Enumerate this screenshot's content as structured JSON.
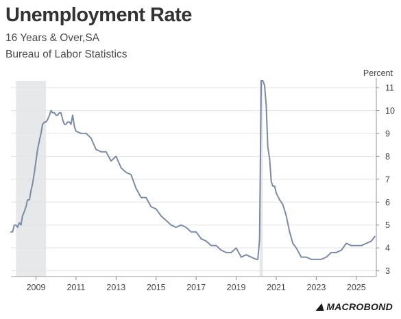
{
  "chart_data": {
    "type": "line",
    "title": "Unemployment Rate",
    "subtitle": [
      "16 Years & Over,SA",
      "Bureau of Labor Statistics"
    ],
    "ylabel": "Percent",
    "yaxis_position": "right",
    "ylim": [
      2.75,
      11.3
    ],
    "yticks": [
      3,
      4,
      5,
      6,
      7,
      8,
      9,
      10,
      11
    ],
    "xlim": [
      2007.75,
      2026.0
    ],
    "xticks": [
      2009,
      2011,
      2013,
      2015,
      2017,
      2019,
      2021,
      2023,
      2025
    ],
    "xtick_labels": [
      "2009",
      "2011",
      "2013",
      "2015",
      "2017",
      "2019",
      "2021",
      "2023",
      "2025"
    ],
    "grid": "horizontal",
    "legend": "none",
    "recessions": [
      [
        2008.0,
        2009.5
      ],
      [
        2020.17,
        2020.33
      ]
    ],
    "series": [
      {
        "color": "#7b8aa3",
        "x": [
          2007.75,
          2007.83,
          2007.92,
          2008.0,
          2008.08,
          2008.17,
          2008.25,
          2008.33,
          2008.42,
          2008.5,
          2008.58,
          2008.67,
          2008.75,
          2008.83,
          2008.92,
          2009.0,
          2009.08,
          2009.17,
          2009.25,
          2009.33,
          2009.42,
          2009.5,
          2009.58,
          2009.67,
          2009.75,
          2009.83,
          2009.92,
          2010.0,
          2010.08,
          2010.17,
          2010.25,
          2010.33,
          2010.42,
          2010.5,
          2010.58,
          2010.67,
          2010.75,
          2010.83,
          2010.92,
          2011.0,
          2011.25,
          2011.5,
          2011.75,
          2012.0,
          2012.25,
          2012.5,
          2012.75,
          2013.0,
          2013.25,
          2013.5,
          2013.75,
          2014.0,
          2014.25,
          2014.5,
          2014.75,
          2015.0,
          2015.25,
          2015.5,
          2015.75,
          2016.0,
          2016.25,
          2016.5,
          2016.75,
          2017.0,
          2017.25,
          2017.5,
          2017.75,
          2018.0,
          2018.25,
          2018.5,
          2018.75,
          2019.0,
          2019.25,
          2019.5,
          2019.75,
          2020.0,
          2020.08,
          2020.17,
          2020.25,
          2020.33,
          2020.42,
          2020.5,
          2020.58,
          2020.67,
          2020.75,
          2020.83,
          2020.92,
          2021.0,
          2021.17,
          2021.33,
          2021.5,
          2021.67,
          2021.83,
          2022.0,
          2022.25,
          2022.5,
          2022.75,
          2023.0,
          2023.25,
          2023.5,
          2023.75,
          2024.0,
          2024.25,
          2024.5,
          2024.75,
          2025.0,
          2025.25,
          2025.5,
          2025.75,
          2025.92
        ],
        "values": [
          4.7,
          4.7,
          5.0,
          5.0,
          4.9,
          5.1,
          5.0,
          5.4,
          5.6,
          5.8,
          6.1,
          6.1,
          6.5,
          6.8,
          7.3,
          7.8,
          8.3,
          8.7,
          9.0,
          9.4,
          9.5,
          9.5,
          9.6,
          9.8,
          10.0,
          9.9,
          9.9,
          9.8,
          9.8,
          9.9,
          9.9,
          9.6,
          9.4,
          9.4,
          9.5,
          9.5,
          9.4,
          9.8,
          9.3,
          9.1,
          9.0,
          9.0,
          8.8,
          8.3,
          8.2,
          8.2,
          7.8,
          8.0,
          7.5,
          7.3,
          7.2,
          6.6,
          6.2,
          6.2,
          5.8,
          5.7,
          5.4,
          5.2,
          5.0,
          4.9,
          5.0,
          4.9,
          4.7,
          4.7,
          4.4,
          4.3,
          4.1,
          4.1,
          3.9,
          3.8,
          3.8,
          4.0,
          3.6,
          3.7,
          3.6,
          3.5,
          3.5,
          4.4,
          11.3,
          11.3,
          11.1,
          10.2,
          8.4,
          7.9,
          6.9,
          6.7,
          6.7,
          6.4,
          6.1,
          5.9,
          5.4,
          4.7,
          4.2,
          4.0,
          3.6,
          3.6,
          3.5,
          3.5,
          3.5,
          3.6,
          3.8,
          3.8,
          3.9,
          4.2,
          4.1,
          4.1,
          4.1,
          4.2,
          4.3,
          4.5
        ]
      }
    ]
  },
  "brand": "MACROBOND"
}
